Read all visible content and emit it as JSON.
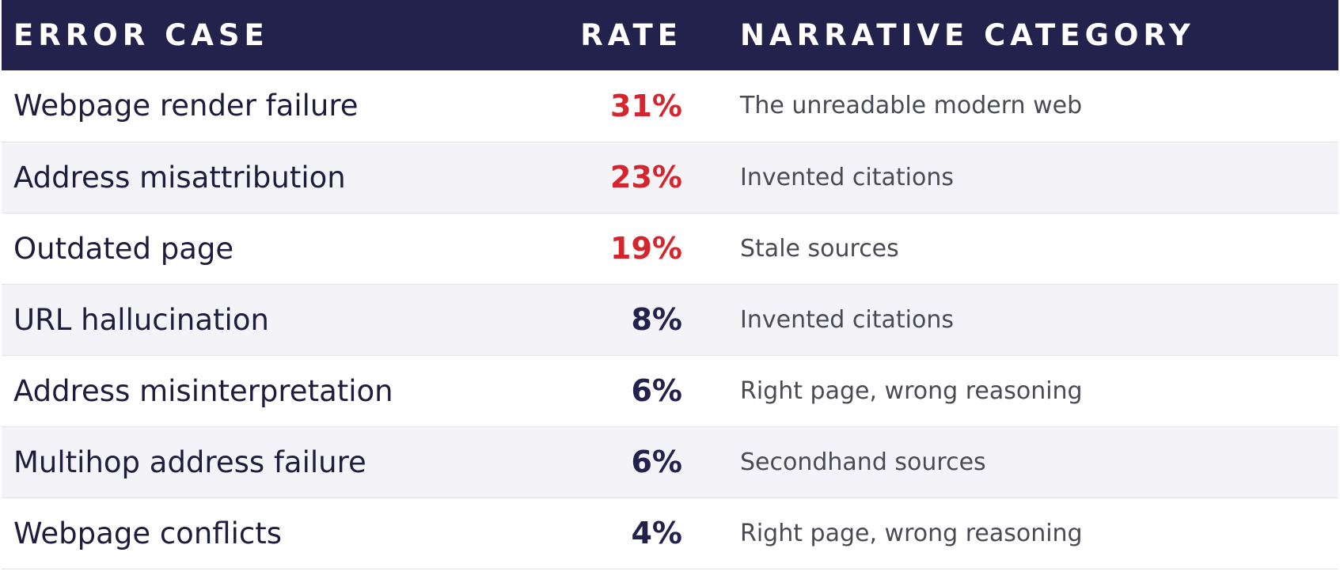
{
  "table": {
    "header": [
      "ERROR CASE",
      "RATE",
      "NARRATIVE CATEGORY"
    ],
    "rows": [
      [
        "Webpage render failure",
        "31%",
        "The unreadable modern web"
      ],
      [
        "Address misattribution",
        "23%",
        "Invented citations"
      ],
      [
        "Outdated page",
        "19%",
        "Stale sources"
      ],
      [
        "URL hallucination",
        "8%",
        "Invented citations"
      ],
      [
        "Address misinterpretation",
        "6%",
        "Right page, wrong reasoning"
      ],
      [
        "Multihop address failure",
        "6%",
        "Secondhand sources"
      ],
      [
        "Webpage conflicts",
        "4%",
        "Right page, wrong reasoning"
      ]
    ]
  }
}
